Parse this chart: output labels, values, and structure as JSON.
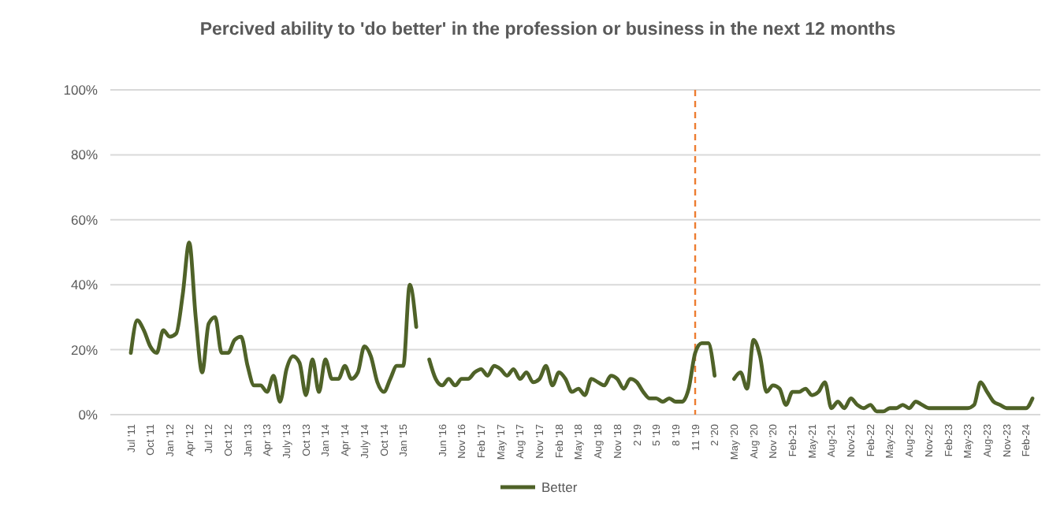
{
  "chart_data": {
    "type": "line",
    "title": "Percived ability to 'do better' in the profession or business in the next 12 months",
    "categories": [
      "Jul '11",
      null,
      null,
      "Oct '11",
      null,
      null,
      "Jan '12",
      null,
      null,
      "Apr '12",
      null,
      null,
      "Jul '12",
      null,
      null,
      "Oct '12",
      null,
      null,
      "Jan '13",
      null,
      null,
      "Apr '13",
      null,
      null,
      "July '13",
      null,
      null,
      "Oct '13",
      null,
      null,
      "Jan '14",
      null,
      null,
      "Apr '14",
      null,
      null,
      "July '14",
      null,
      null,
      "Oct '14",
      null,
      null,
      "Jan '15",
      null,
      null,
      null,
      null,
      null,
      "Jun '16",
      null,
      null,
      "Nov '16",
      null,
      null,
      "Feb '17",
      null,
      null,
      "May '17",
      null,
      null,
      "Aug '17",
      null,
      null,
      "Nov '17",
      null,
      null,
      "Feb '18",
      null,
      null,
      "May '18",
      null,
      null,
      "Aug '18",
      null,
      null,
      "Nov '18",
      null,
      null,
      "2 '19",
      null,
      null,
      "5 '19",
      null,
      null,
      "8 '19",
      null,
      null,
      "11 '19",
      null,
      null,
      "2 '20",
      null,
      null,
      "May '20",
      null,
      null,
      "Aug '20",
      null,
      null,
      "Nov '20",
      null,
      null,
      "Feb-21",
      null,
      null,
      "May-21",
      null,
      null,
      "Aug-21",
      null,
      null,
      "Nov-21",
      null,
      null,
      "Feb-22",
      null,
      null,
      "May-22",
      null,
      null,
      "Aug-22",
      null,
      null,
      "Nov-22",
      null,
      null,
      "Feb-23",
      null,
      null,
      "May-23",
      null,
      null,
      "Aug-23",
      null,
      null,
      "Nov-23",
      null,
      null,
      "Feb-24",
      null
    ],
    "series": [
      {
        "name": "Better",
        "color": "#4f6228",
        "values": [
          19,
          29,
          26,
          21,
          19,
          26,
          24,
          25,
          37,
          53,
          30,
          13,
          28,
          30,
          19,
          19,
          23,
          24,
          15,
          9,
          9,
          7,
          12,
          4,
          14,
          18,
          16,
          6,
          17,
          7,
          17,
          11,
          11,
          15,
          11,
          13,
          21,
          18,
          10,
          7,
          11,
          15,
          15,
          40,
          27,
          null,
          17,
          11,
          9,
          11,
          9,
          11,
          11,
          13,
          14,
          12,
          15,
          14,
          12,
          14,
          11,
          13,
          10,
          11,
          15,
          9,
          13,
          11,
          7,
          8,
          6,
          11,
          10,
          9,
          12,
          11,
          8,
          11,
          10,
          7,
          5,
          5,
          4,
          5,
          4,
          4,
          8,
          19,
          22,
          22,
          12,
          null,
          null,
          11,
          13,
          8,
          23,
          18,
          7,
          9,
          8,
          3,
          7,
          7,
          8,
          6,
          7,
          10,
          2,
          4,
          2,
          5,
          3,
          2,
          3,
          1,
          1,
          2,
          2,
          3,
          2,
          4,
          3,
          2,
          2,
          2,
          2,
          2,
          2,
          2,
          3,
          10,
          7,
          4,
          3,
          2,
          2,
          2,
          2,
          5
        ]
      }
    ],
    "ylim": [
      0,
      100
    ],
    "yticks": [
      {
        "value": 0,
        "label": "0%"
      },
      {
        "value": 20,
        "label": "20%"
      },
      {
        "value": 40,
        "label": "40%"
      },
      {
        "value": 60,
        "label": "60%"
      },
      {
        "value": 80,
        "label": "80%"
      },
      {
        "value": 100,
        "label": "100%"
      }
    ],
    "grid": "y",
    "legend": "bottom",
    "line_style": "solid",
    "ref_lines": [
      {
        "axis": "x",
        "value": "11 '19",
        "color": "#ed7d31",
        "line_style": "dashed"
      }
    ]
  }
}
